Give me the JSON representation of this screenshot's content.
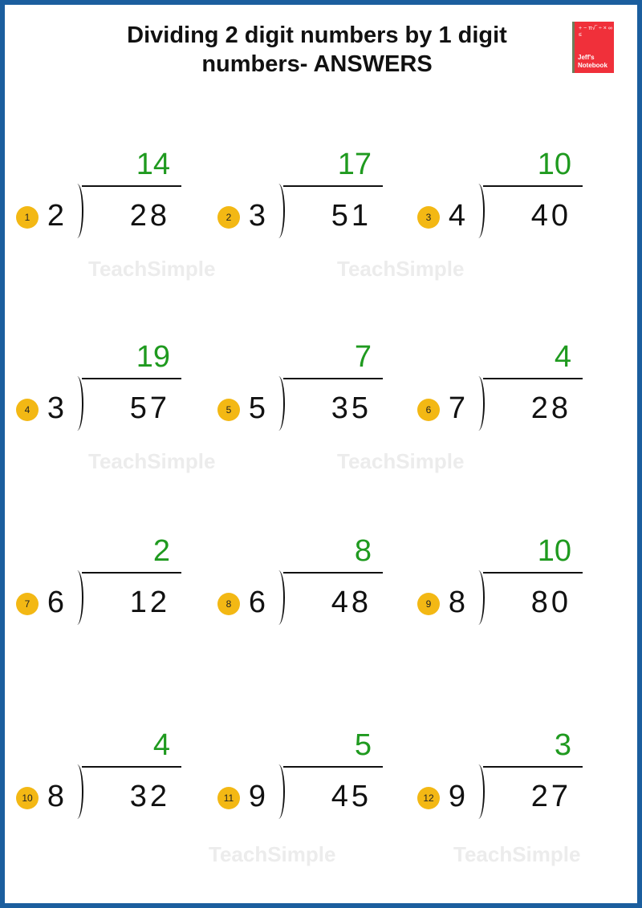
{
  "title": "Dividing 2 digit numbers by 1 digit numbers- ANSWERS",
  "logo": {
    "symbols": "+ − π√‾ ÷ × ∞ ≤",
    "name": "Jeff's Notebook"
  },
  "watermark": "TeachSimple",
  "colors": {
    "border": "#1b5e9e",
    "answer": "#1f9a1f",
    "badge": "#f3b814"
  },
  "problems": [
    {
      "number": "1",
      "divisor": "2",
      "dividend": "28",
      "answer": "14"
    },
    {
      "number": "2",
      "divisor": "3",
      "dividend": "51",
      "answer": "17"
    },
    {
      "number": "3",
      "divisor": "4",
      "dividend": "40",
      "answer": "10"
    },
    {
      "number": "4",
      "divisor": "3",
      "dividend": "57",
      "answer": "19"
    },
    {
      "number": "5",
      "divisor": "5",
      "dividend": "35",
      "answer": "7"
    },
    {
      "number": "6",
      "divisor": "7",
      "dividend": "28",
      "answer": "4"
    },
    {
      "number": "7",
      "divisor": "6",
      "dividend": "12",
      "answer": "2"
    },
    {
      "number": "8",
      "divisor": "6",
      "dividend": "48",
      "answer": "8"
    },
    {
      "number": "9",
      "divisor": "8",
      "dividend": "80",
      "answer": "10"
    },
    {
      "number": "10",
      "divisor": "8",
      "dividend": "32",
      "answer": "4"
    },
    {
      "number": "11",
      "divisor": "9",
      "dividend": "45",
      "answer": "5"
    },
    {
      "number": "12",
      "divisor": "9",
      "dividend": "27",
      "answer": "3"
    }
  ]
}
